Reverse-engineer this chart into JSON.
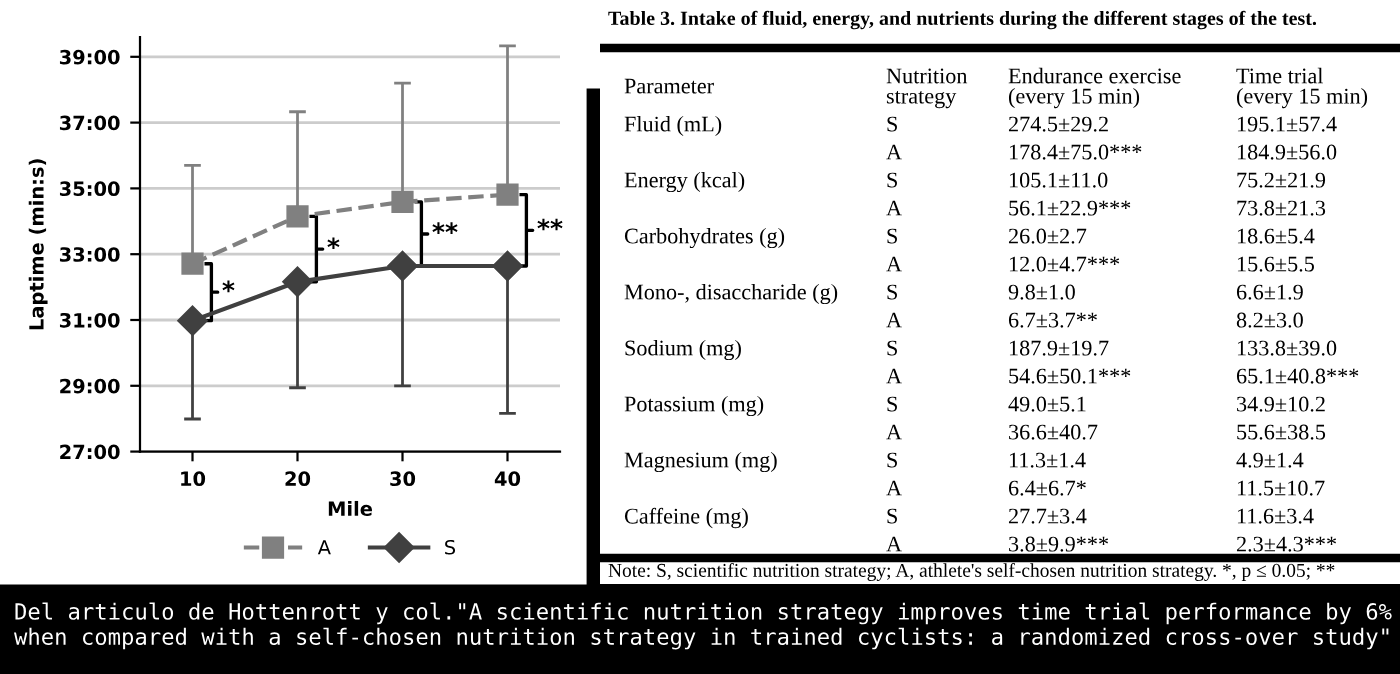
{
  "chart_data": [
    {
      "type": "line",
      "xlabel": "Mile",
      "ylabel": "Laptime (min:s)",
      "categories": [
        "10",
        "20",
        "30",
        "40"
      ],
      "series": [
        {
          "name": "A",
          "color": "#808080",
          "marker": "square",
          "line_style": "dashed",
          "values": [
            32.71,
            34.15,
            34.59,
            34.81
          ],
          "errors": [
            [
              32.71,
              35.7
            ],
            [
              34.15,
              37.33
            ],
            [
              34.59,
              38.2
            ],
            [
              34.81,
              39.33
            ]
          ]
        },
        {
          "name": "S",
          "color": "#404040",
          "marker": "diamond",
          "line_style": "solid",
          "values": [
            30.98,
            32.16,
            32.64,
            32.64
          ],
          "errors": [
            [
              27.99,
              30.98
            ],
            [
              28.94,
              32.16
            ],
            [
              29.0,
              32.64
            ],
            [
              28.16,
              32.64
            ]
          ]
        }
      ],
      "ylim": [
        27,
        39.6
      ],
      "yticks": [
        {
          "value": 27,
          "label": "27:00"
        },
        {
          "value": 29,
          "label": "29:00"
        },
        {
          "value": 31,
          "label": "31:00"
        },
        {
          "value": 33,
          "label": "33:00"
        },
        {
          "value": 35,
          "label": "35:00"
        },
        {
          "value": 37,
          "label": "37:00"
        },
        {
          "value": 39,
          "label": "39:00"
        }
      ],
      "grid": "y",
      "legend": "bottom",
      "annotations": [
        "*",
        "*",
        "**",
        "**",
        "Del articulo de Hottenrott y col.\"A scientific nutrition strategy improves time trial performance by 6%\nwhen compared with a self-chosen nutrition strategy in trained cyclists: a randomized cross-over study\""
      ]
    },
    {
      "type": "other",
      "title": "Table 3. Intake of fluid, energy, and nutrients during the different stages of the test.",
      "annotations": [
        "Parameter",
        "Nutrition\nstrategy",
        "Endurance exercise\n(every 15 min)",
        "Time trial\n(every 15 min)",
        "Fluid (mL)",
        "S",
        "274.5±29.2",
        "195.1±57.4",
        null,
        "A",
        "178.4±75.0***",
        "184.9±56.0",
        "Energy (kcal)",
        "S",
        "105.1±11.0",
        "75.2±21.9",
        null,
        "A",
        "56.1±22.9***",
        "73.8±21.3",
        "Carbohydrates (g)",
        "S",
        "26.0±2.7",
        "18.6±5.4",
        null,
        "A",
        "12.0±4.7***",
        "15.6±5.5",
        "Mono-, disaccharide (g)",
        "S",
        "9.8±1.0",
        "6.6±1.9",
        null,
        "A",
        "6.7±3.7**",
        "8.2±3.0",
        "Sodium (mg)",
        "S",
        "187.9±19.7",
        "133.8±39.0",
        null,
        "A",
        "54.6±50.1***",
        "65.1±40.8***",
        "Potassium (mg)",
        "S",
        "49.0±5.1",
        "34.9±10.2",
        null,
        "A",
        "36.6±40.7",
        "55.6±38.5",
        "Magnesium (mg)",
        "S",
        "11.3±1.4",
        "4.9±1.4",
        null,
        "A",
        "6.4±6.7*",
        "11.5±10.7",
        "Caffeine (mg)",
        "S",
        "27.7±3.4",
        "11.6±3.4",
        null,
        "A",
        "3.8±9.9***",
        "2.3±4.3***",
        "Note: S, scientific nutrition strategy; A, athlete's self-chosen nutrition strategy. *, p ≤ 0.05; **"
      ]
    }
  ]
}
